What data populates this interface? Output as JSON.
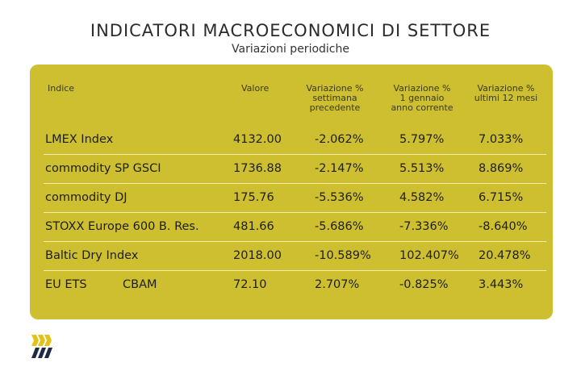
{
  "header": {
    "title": "INDICATORI MACROECONOMICI DI SETTORE",
    "subtitle": "Variazioni periodiche"
  },
  "table": {
    "columns": {
      "index": "Indice",
      "value": "Valore",
      "weekly": [
        "Variazione %",
        "settimana",
        "precedente"
      ],
      "ytd": [
        "Variazione %",
        "1 gennaio",
        "anno corrente"
      ],
      "yoy": [
        "Variazione %",
        "ultimi 12 mesi"
      ]
    },
    "rows": [
      {
        "name": "LMEX Index",
        "extra": "",
        "value": "4132.00",
        "weekly": "-2.062%",
        "ytd": "5.797%",
        "yoy": "7.033%"
      },
      {
        "name": "commodity SP GSCI",
        "extra": "",
        "value": "1736.88",
        "weekly": "-2.147%",
        "ytd": "5.513%",
        "yoy": "8.869%"
      },
      {
        "name": "commodity DJ",
        "extra": "",
        "value": "175.76",
        "weekly": "-5.536%",
        "ytd": "4.582%",
        "yoy": "6.715%"
      },
      {
        "name": "STOXX Europe 600 B. Res.",
        "extra": "",
        "value": "481.66",
        "weekly": "-5.686%",
        "ytd": "-7.336%",
        "yoy": "-8.640%"
      },
      {
        "name": "Baltic Dry Index",
        "extra": "",
        "value": "2018.00",
        "weekly": "-10.589%",
        "ytd": "102.407%",
        "yoy": "20.478%"
      },
      {
        "name": "EU ETS",
        "extra": "CBAM",
        "value": "72.10",
        "weekly": "2.707%",
        "ytd": "-0.825%",
        "yoy": "3.443%"
      }
    ]
  },
  "colors": {
    "panel": "#cdbf2f",
    "logo_yellow": "#e3c21a",
    "logo_navy": "#1f2a44"
  },
  "logo": {
    "icon": "chevron-stripes-logo"
  }
}
